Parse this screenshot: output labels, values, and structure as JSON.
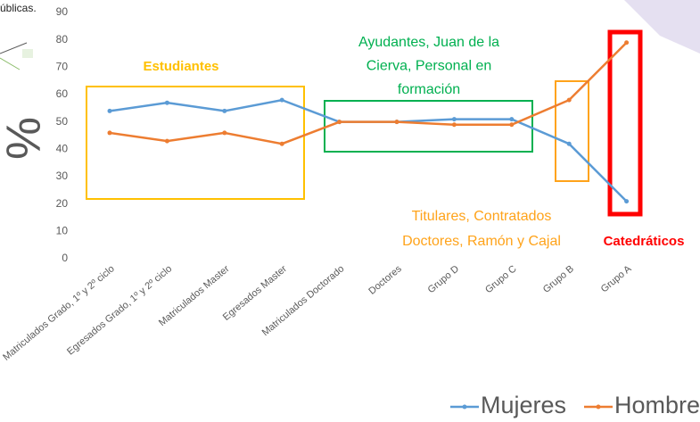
{
  "chart_data": {
    "type": "line",
    "corner_text": "úblicas.",
    "y_axis_label": "%",
    "categories": [
      "Matriculados Grado, 1º y 2º ciclo",
      "Egresados Grado, 1º y 2º ciclo",
      "Matriculados Master",
      "Egresados Master",
      "Matriculados Doctorado",
      "Doctores",
      "Grupo D",
      "Grupo C",
      "Grupo B",
      "Grupo A"
    ],
    "series": [
      {
        "name": "Mujeres",
        "color": "#5b9bd5",
        "values": [
          54,
          57,
          54,
          58,
          50,
          50,
          51,
          51,
          42,
          21
        ]
      },
      {
        "name": "Hombres",
        "color": "#ed7d31",
        "values": [
          46,
          43,
          46,
          42,
          50,
          50,
          49,
          49,
          58,
          79
        ]
      }
    ],
    "ylim": [
      0,
      90
    ],
    "yticks": [
      0,
      10,
      20,
      30,
      40,
      50,
      60,
      70,
      80,
      90
    ],
    "annotations": [
      {
        "lines": [
          "Estudiantes"
        ],
        "color": "#ffc000"
      },
      {
        "lines": [
          "Ayudantes, Juan de la",
          "Cierva, Personal en",
          "formación"
        ],
        "color": "#00b050"
      },
      {
        "lines": [
          "Titulares, Contratados",
          "Doctores, Ramón y Cajal"
        ],
        "color": "#ffa31a"
      },
      {
        "lines": [
          "Catedráticos"
        ],
        "color": "#ff0000"
      }
    ],
    "legend": "bottom"
  }
}
